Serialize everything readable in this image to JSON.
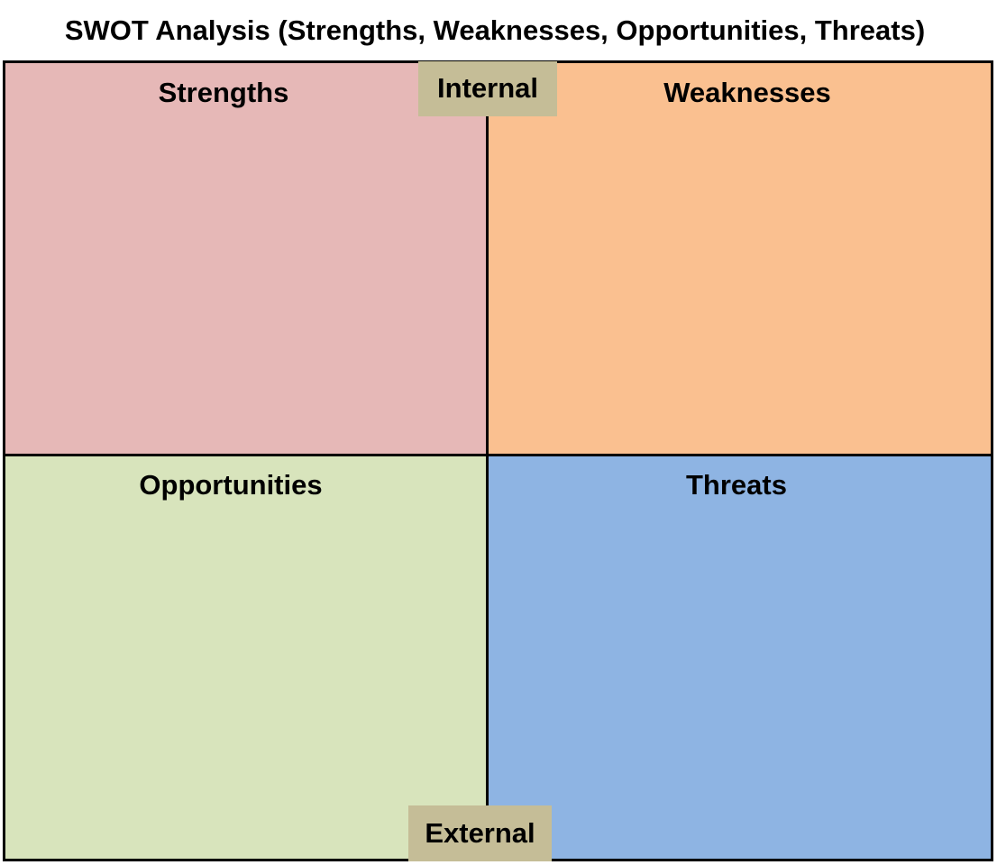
{
  "title": "SWOT Analysis (Strengths, Weaknesses, Opportunities, Threats)",
  "quadrants": [
    {
      "label": "Strengths",
      "color": "#e6b8b7"
    },
    {
      "label": "Weaknesses",
      "color": "#fac090"
    },
    {
      "label": "Opportunities",
      "color": "#d8e4bc"
    },
    {
      "label": "Threats",
      "color": "#8eb4e3"
    }
  ],
  "axis_tags": {
    "internal": "Internal",
    "external": "External",
    "color": "#c5bd97"
  }
}
